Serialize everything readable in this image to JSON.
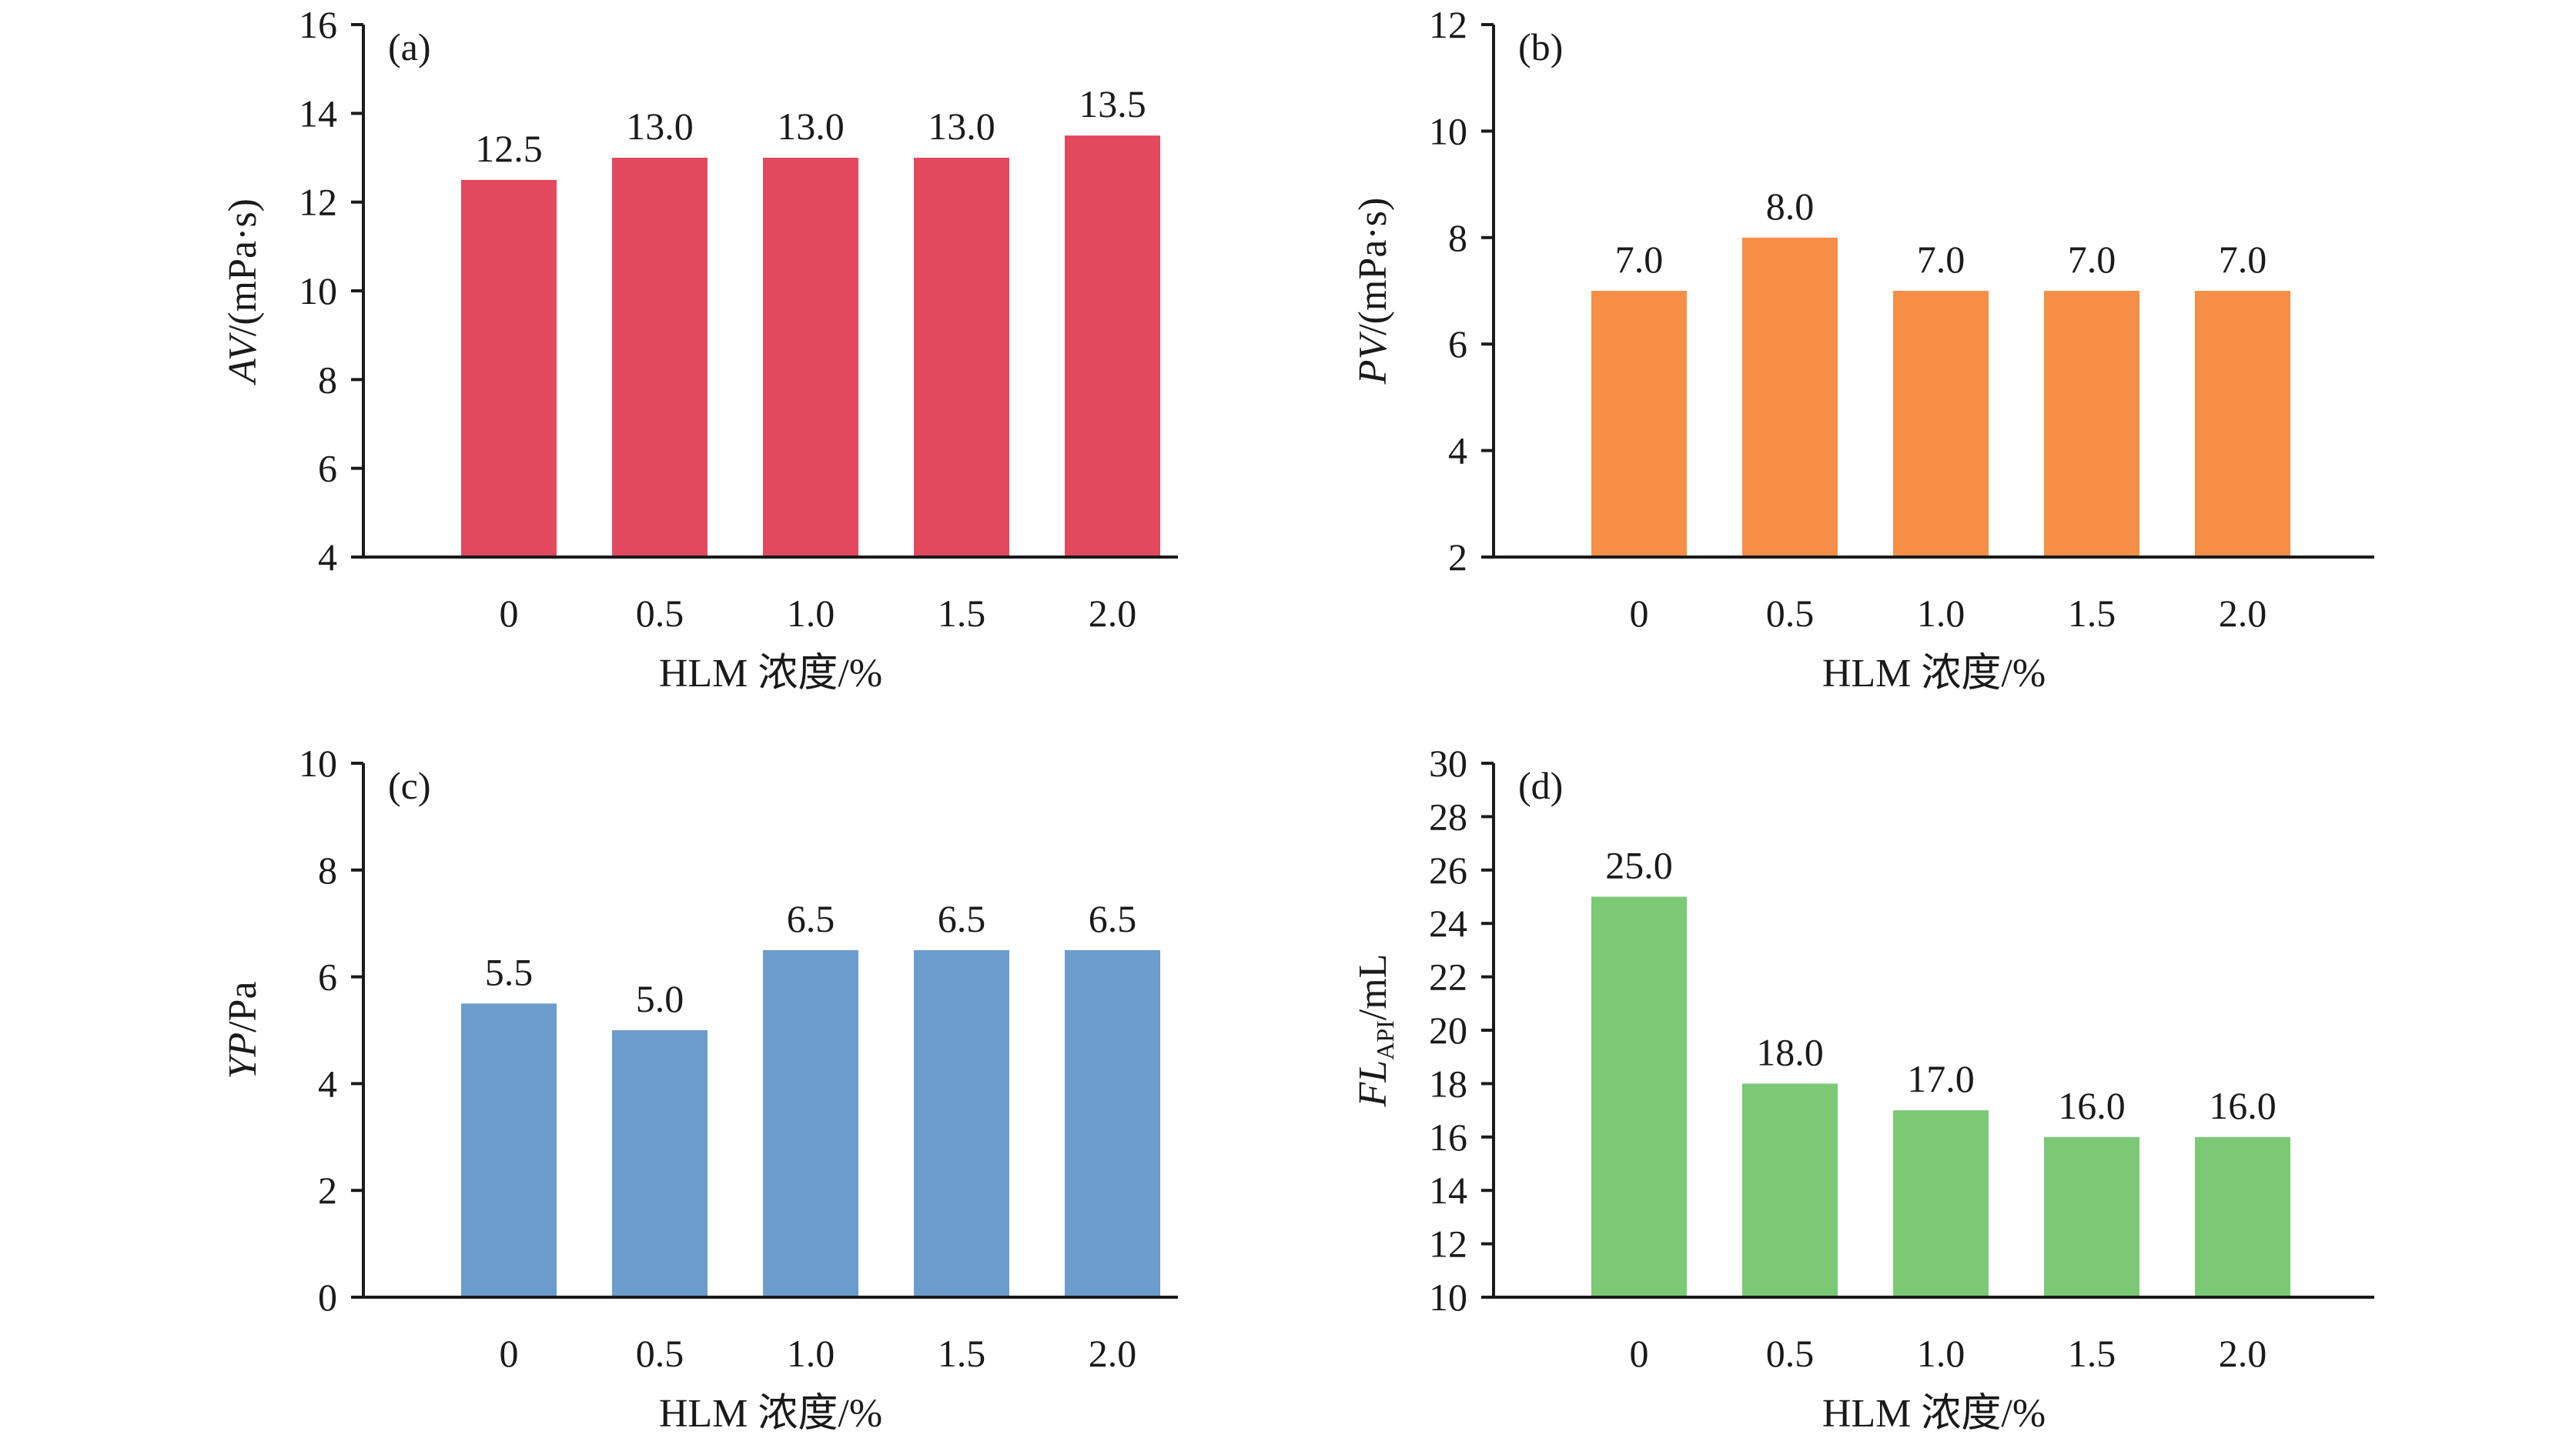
{
  "chart_data": [
    {
      "type": "bar",
      "panel": "(a)",
      "categories": [
        "0",
        "0.5",
        "1.0",
        "1.5",
        "2.0"
      ],
      "values": [
        12.5,
        13.0,
        13.0,
        13.0,
        13.5
      ],
      "labels": [
        "12.5",
        "13.0",
        "13.0",
        "13.0",
        "13.5"
      ],
      "ylim": [
        4,
        16
      ],
      "yticks": [
        "4",
        "6",
        "8",
        "10",
        "12",
        "14",
        "16"
      ],
      "xlabel": "HLM 浓度/%",
      "ylabel_italic": "AV",
      "ylabel_sub": "",
      "ylabel_rest": "/(mPa·s)",
      "color": "#E2485E",
      "grid": false
    },
    {
      "type": "bar",
      "panel": "(b)",
      "categories": [
        "0",
        "0.5",
        "1.0",
        "1.5",
        "2.0"
      ],
      "values": [
        7.0,
        8.0,
        7.0,
        7.0,
        7.0
      ],
      "labels": [
        "7.0",
        "8.0",
        "7.0",
        "7.0",
        "7.0"
      ],
      "ylim": [
        2,
        12
      ],
      "yticks": [
        "2",
        "4",
        "6",
        "8",
        "10",
        "12"
      ],
      "xlabel": "HLM 浓度/%",
      "ylabel_italic": "PV",
      "ylabel_sub": "",
      "ylabel_rest": "/(mPa·s)",
      "color": "#F68E47",
      "grid": false
    },
    {
      "type": "bar",
      "panel": "(c)",
      "categories": [
        "0",
        "0.5",
        "1.0",
        "1.5",
        "2.0"
      ],
      "values": [
        5.5,
        5.0,
        6.5,
        6.5,
        6.5
      ],
      "labels": [
        "5.5",
        "5.0",
        "6.5",
        "6.5",
        "6.5"
      ],
      "ylim": [
        0,
        10
      ],
      "yticks": [
        "0",
        "2",
        "4",
        "6",
        "8",
        "10"
      ],
      "xlabel": "HLM 浓度/%",
      "ylabel_italic": "YP",
      "ylabel_sub": "",
      "ylabel_rest": "/Pa",
      "color": "#6B9CCB",
      "grid": false
    },
    {
      "type": "bar",
      "panel": "(d)",
      "categories": [
        "0",
        "0.5",
        "1.0",
        "1.5",
        "2.0"
      ],
      "values": [
        25.0,
        18.0,
        17.0,
        16.0,
        16.0
      ],
      "labels": [
        "25.0",
        "18.0",
        "17.0",
        "16.0",
        "16.0"
      ],
      "ylim": [
        10,
        30
      ],
      "yticks": [
        "10",
        "12",
        "14",
        "16",
        "18",
        "20",
        "22",
        "24",
        "26",
        "28",
        "30"
      ],
      "xlabel": "HLM 浓度/%",
      "ylabel_italic": "FL",
      "ylabel_sub": "API",
      "ylabel_rest": "/mL",
      "color": "#7BC975",
      "grid": false
    }
  ]
}
